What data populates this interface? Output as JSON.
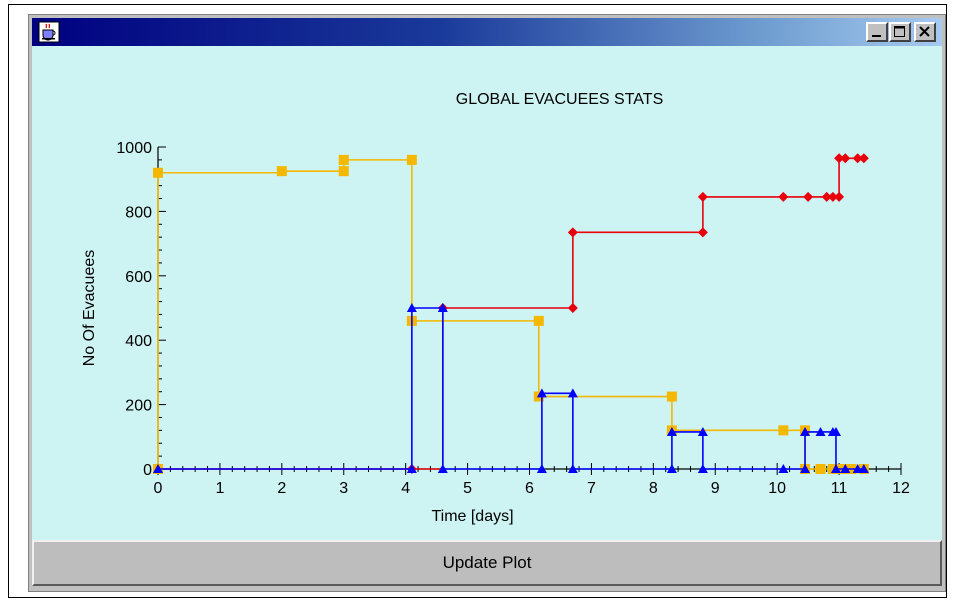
{
  "window": {
    "title_text": "",
    "icon": "java-cup-icon",
    "controls": [
      "minimize-icon",
      "maximize-icon",
      "close-icon"
    ]
  },
  "button": {
    "update_label": "Update Plot"
  },
  "colors": {
    "plot_bg": "#cdf3f3",
    "series_red": "#e8000a",
    "series_orange": "#f5b800",
    "series_blue": "#0000ff"
  },
  "chart_data": {
    "type": "line",
    "title": "GLOBAL EVACUEES STATS",
    "xlabel": "Time [days]",
    "ylabel": "No Of Evacuees",
    "xlim": [
      0,
      12
    ],
    "ylim": [
      0,
      1000
    ],
    "xticks": [
      "0",
      "1",
      "2",
      "3",
      "4",
      "5",
      "6",
      "7",
      "8",
      "9",
      "10",
      "11",
      "12"
    ],
    "yticks": [
      "0",
      "200",
      "400",
      "600",
      "800",
      "1000"
    ],
    "step": true,
    "grid": false,
    "legend": "none",
    "series": [
      {
        "color": "#e8000a",
        "marker": "diamond",
        "x": [
          0,
          4.1,
          4.6,
          6.7,
          6.7,
          8.8,
          8.8,
          10.1,
          10.5,
          10.8,
          10.9,
          11.0,
          11.0,
          11.1,
          11.3,
          11.4
        ],
        "y": [
          0,
          0,
          500,
          500,
          735,
          735,
          845,
          845,
          845,
          845,
          845,
          845,
          965,
          965,
          965,
          965
        ]
      },
      {
        "color": "#f5b800",
        "marker": "square",
        "x": [
          0,
          0,
          2.0,
          3.0,
          3.0,
          4.1,
          4.1,
          6.15,
          6.15,
          8.3,
          8.3,
          10.1,
          10.45,
          10.45,
          10.7,
          10.9,
          11.0,
          11.1,
          11.2,
          11.4
        ],
        "y": [
          0,
          920,
          925,
          925,
          960,
          960,
          460,
          460,
          225,
          225,
          120,
          120,
          120,
          0,
          0,
          0,
          0,
          0,
          0,
          0
        ]
      },
      {
        "color": "#0000ff",
        "marker": "triangle",
        "x": [
          0,
          4.1,
          4.1,
          4.6,
          4.6,
          6.2,
          6.2,
          6.7,
          6.7,
          8.3,
          8.3,
          8.8,
          8.8,
          10.1,
          10.45,
          10.45,
          10.7,
          10.9,
          10.95,
          10.95,
          11.1,
          11.3,
          11.4
        ],
        "y": [
          0,
          0,
          500,
          500,
          0,
          0,
          235,
          235,
          0,
          0,
          115,
          115,
          0,
          0,
          0,
          115,
          115,
          115,
          115,
          0,
          0,
          0,
          0
        ]
      }
    ]
  }
}
